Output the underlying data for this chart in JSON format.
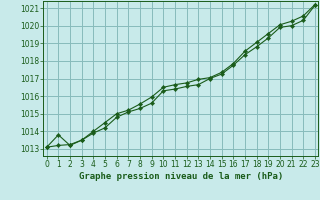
{
  "title": "Graphe pression niveau de la mer (hPa)",
  "bg_color": "#c8eaea",
  "grid_color": "#88bbbb",
  "line_color": "#1a5c1a",
  "marker_color": "#1a5c1a",
  "xlim": [
    -0.3,
    23.3
  ],
  "ylim": [
    1012.6,
    1021.4
  ],
  "yticks": [
    1013,
    1014,
    1015,
    1016,
    1017,
    1018,
    1019,
    1020,
    1021
  ],
  "xticks": [
    0,
    1,
    2,
    3,
    4,
    5,
    6,
    7,
    8,
    9,
    10,
    11,
    12,
    13,
    14,
    15,
    16,
    17,
    18,
    19,
    20,
    21,
    22,
    23
  ],
  "series1_x": [
    0,
    1,
    2,
    3,
    4,
    5,
    6,
    7,
    8,
    9,
    10,
    11,
    12,
    13,
    14,
    15,
    16,
    17,
    18,
    19,
    20,
    21,
    22,
    23
  ],
  "series1_y": [
    1013.1,
    1013.8,
    1013.2,
    1013.5,
    1013.9,
    1014.2,
    1014.8,
    1015.1,
    1015.3,
    1015.6,
    1016.3,
    1016.4,
    1016.55,
    1016.65,
    1017.0,
    1017.25,
    1017.75,
    1018.35,
    1018.8,
    1019.3,
    1019.9,
    1020.0,
    1020.3,
    1021.15
  ],
  "series2_x": [
    0,
    1,
    2,
    3,
    4,
    5,
    6,
    7,
    8,
    9,
    10,
    11,
    12,
    13,
    14,
    15,
    16,
    17,
    18,
    19,
    20,
    21,
    22,
    23
  ],
  "series2_y": [
    1013.1,
    1013.2,
    1013.25,
    1013.5,
    1014.0,
    1014.5,
    1015.0,
    1015.2,
    1015.55,
    1015.95,
    1016.5,
    1016.65,
    1016.75,
    1016.95,
    1017.05,
    1017.35,
    1017.85,
    1018.55,
    1019.05,
    1019.55,
    1020.05,
    1020.25,
    1020.55,
    1021.2
  ],
  "xlabel_fontsize": 6.5,
  "tick_fontsize": 5.5
}
